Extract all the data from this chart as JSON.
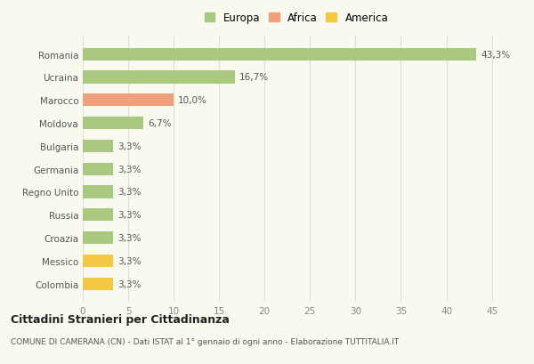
{
  "categories": [
    "Colombia",
    "Messico",
    "Croazia",
    "Russia",
    "Regno Unito",
    "Germania",
    "Bulgaria",
    "Moldova",
    "Marocco",
    "Ucraina",
    "Romania"
  ],
  "values": [
    3.3,
    3.3,
    3.3,
    3.3,
    3.3,
    3.3,
    3.3,
    6.7,
    10.0,
    16.7,
    43.3
  ],
  "labels": [
    "3,3%",
    "3,3%",
    "3,3%",
    "3,3%",
    "3,3%",
    "3,3%",
    "3,3%",
    "6,7%",
    "10,0%",
    "16,7%",
    "43,3%"
  ],
  "colors": [
    "#f5c842",
    "#f5c842",
    "#a8c97f",
    "#a8c97f",
    "#a8c97f",
    "#a8c97f",
    "#a8c97f",
    "#a8c97f",
    "#f0a07a",
    "#a8c97f",
    "#a8c97f"
  ],
  "legend": [
    {
      "label": "Europa",
      "color": "#a8c97f"
    },
    {
      "label": "Africa",
      "color": "#f0a07a"
    },
    {
      "label": "America",
      "color": "#f5c842"
    }
  ],
  "xlim": [
    0,
    47
  ],
  "xticks": [
    0,
    5,
    10,
    15,
    20,
    25,
    30,
    35,
    40,
    45
  ],
  "title": "Cittadini Stranieri per Cittadinanza",
  "subtitle": "COMUNE DI CAMERANA (CN) - Dati ISTAT al 1° gennaio di ogni anno - Elaborazione TUTTITALIA.IT",
  "bg_color": "#f9f9f0",
  "grid_color": "#e0e0d0",
  "bar_height": 0.55
}
